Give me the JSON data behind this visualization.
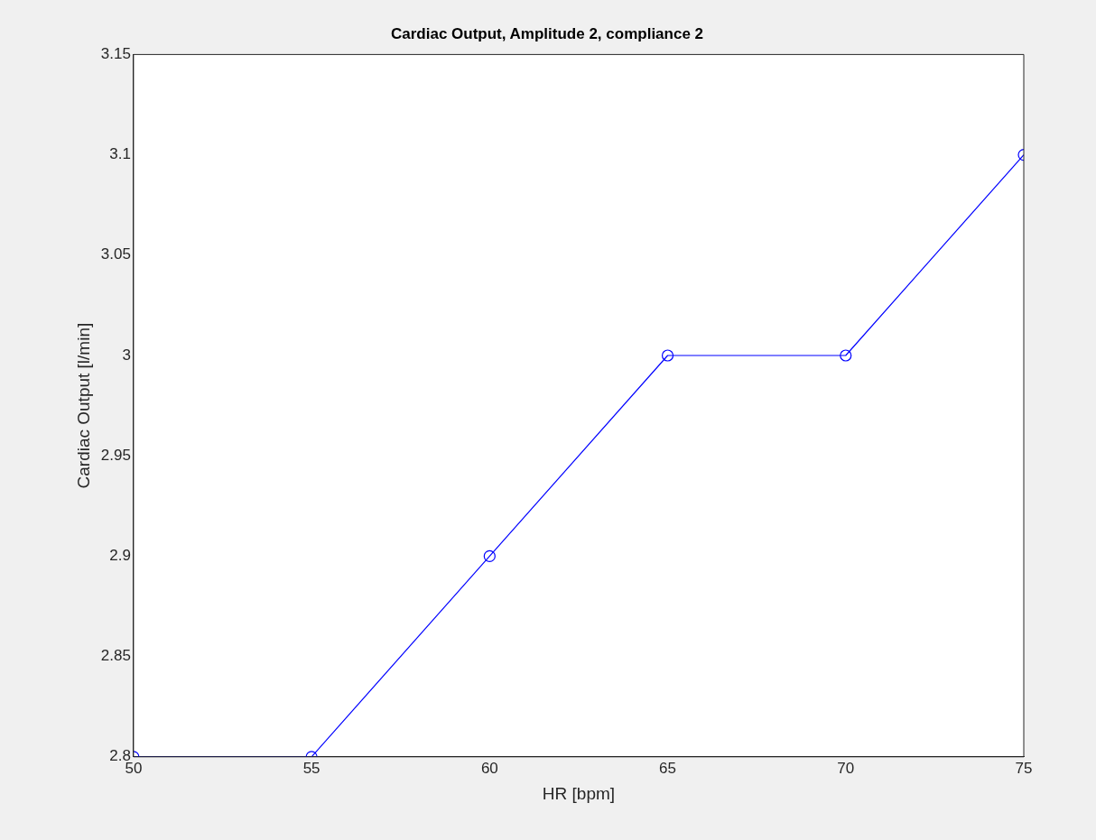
{
  "chart_data": {
    "type": "line",
    "title": "Cardiac Output, Amplitude 2, compliance 2",
    "xlabel": "HR [bpm]",
    "ylabel": "Cardiac Output [l/min]",
    "x": [
      50,
      55,
      60,
      65,
      70,
      75
    ],
    "series": [
      {
        "color": "#0000ff",
        "values": [
          2.8,
          2.8,
          2.9,
          3,
          3,
          3.1
        ]
      }
    ],
    "xlim": [
      50,
      75
    ],
    "xticks": [
      50,
      55,
      60,
      65,
      70,
      75
    ],
    "ylim": [
      2.8,
      3.15
    ],
    "yticks": [
      2.8,
      2.85,
      2.9,
      2.95,
      3,
      3.05,
      3.1,
      3.15
    ],
    "grid": false,
    "legend": false,
    "marker": "circle",
    "line_style": "solid"
  }
}
